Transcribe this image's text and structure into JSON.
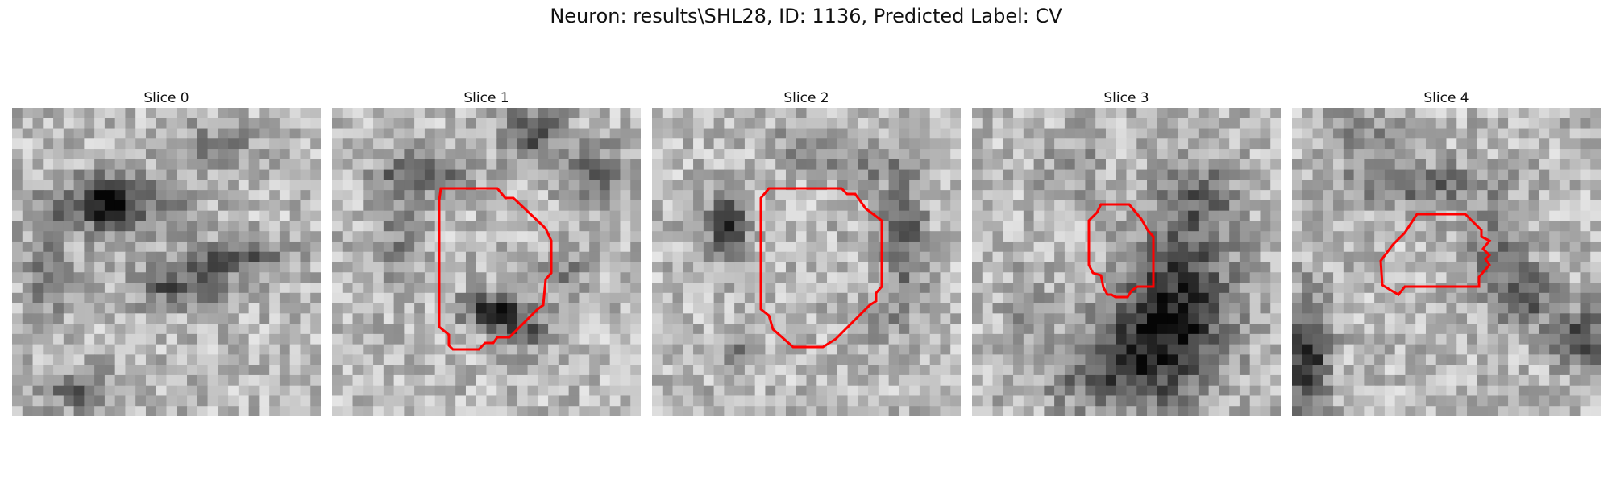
{
  "figure": {
    "title": "Neuron: results\\SHL28, ID: 1136, Predicted Label: CV"
  },
  "contour_color": "#ff0000",
  "panels": [
    {
      "title": "Slice 0"
    },
    {
      "title": "Slice 1"
    },
    {
      "title": "Slice 2"
    },
    {
      "title": "Slice 3"
    },
    {
      "title": "Slice 4"
    }
  ]
}
